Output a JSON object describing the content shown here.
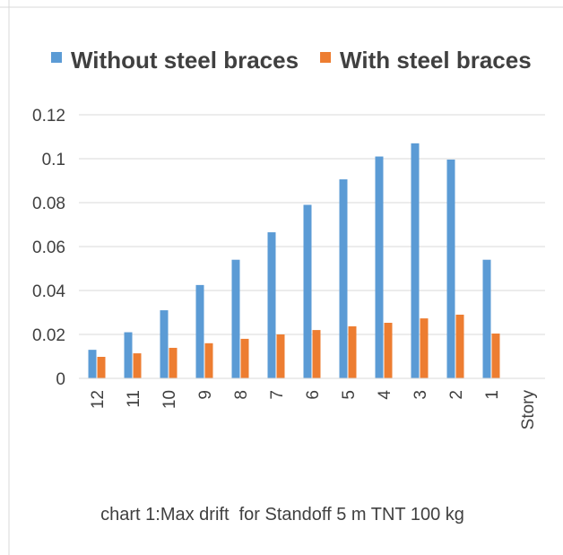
{
  "chart_data": {
    "type": "bar",
    "categories": [
      "12",
      "11",
      "10",
      "9",
      "8",
      "7",
      "6",
      "5",
      "4",
      "3",
      "2",
      "1",
      "Story"
    ],
    "series": [
      {
        "name": "Without steel braces",
        "color": "#5b9bd5",
        "values": [
          0.013,
          0.021,
          0.031,
          0.0425,
          0.054,
          0.0665,
          0.079,
          0.0906,
          0.101,
          0.107,
          0.0996,
          0.054,
          null
        ]
      },
      {
        "name": "With steel braces",
        "color": "#ed7d31",
        "values": [
          0.0098,
          0.0114,
          0.0139,
          0.016,
          0.018,
          0.02,
          0.022,
          0.0237,
          0.0253,
          0.0273,
          0.029,
          0.0204,
          null
        ]
      }
    ],
    "ylim": [
      0,
      0.12
    ],
    "yticks": [
      0,
      0.02,
      0.04,
      0.06,
      0.08,
      0.1,
      0.12
    ],
    "grid": true,
    "legend": "top",
    "caption": "chart 1:Max drift  for Standoff 5 m TNT 100 kg"
  }
}
